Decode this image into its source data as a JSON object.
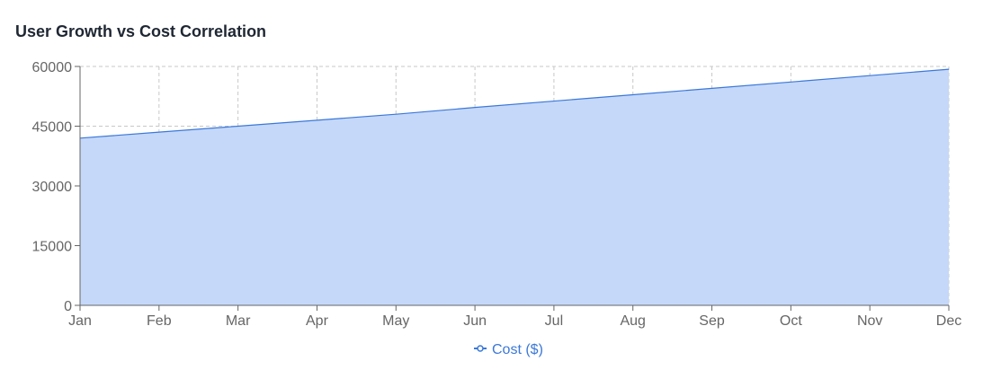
{
  "title": "User Growth vs Cost Correlation",
  "colors": {
    "line": "#3b78d8",
    "area": "#c5d8fa",
    "grid": "#c8c8c8",
    "axis": "#666666",
    "tick_text": "#666666",
    "title": "#1f2733",
    "legend": "#3b78d8"
  },
  "chart_data": {
    "type": "area",
    "title": "User Growth vs Cost Correlation",
    "xlabel": "",
    "ylabel": "",
    "categories": [
      "Jan",
      "Feb",
      "Mar",
      "Apr",
      "May",
      "Jun",
      "Jul",
      "Aug",
      "Sep",
      "Oct",
      "Nov",
      "Dec"
    ],
    "series": [
      {
        "name": "Cost ($)",
        "values": [
          42000,
          43500,
          45000,
          46500,
          48000,
          49700,
          51300,
          52900,
          54500,
          56100,
          57700,
          59300
        ]
      }
    ],
    "ylim": [
      0,
      60000
    ],
    "yticks": [
      0,
      15000,
      30000,
      45000,
      60000
    ],
    "grid": true,
    "grid_style": "dashed",
    "legend_position": "bottom-center"
  }
}
